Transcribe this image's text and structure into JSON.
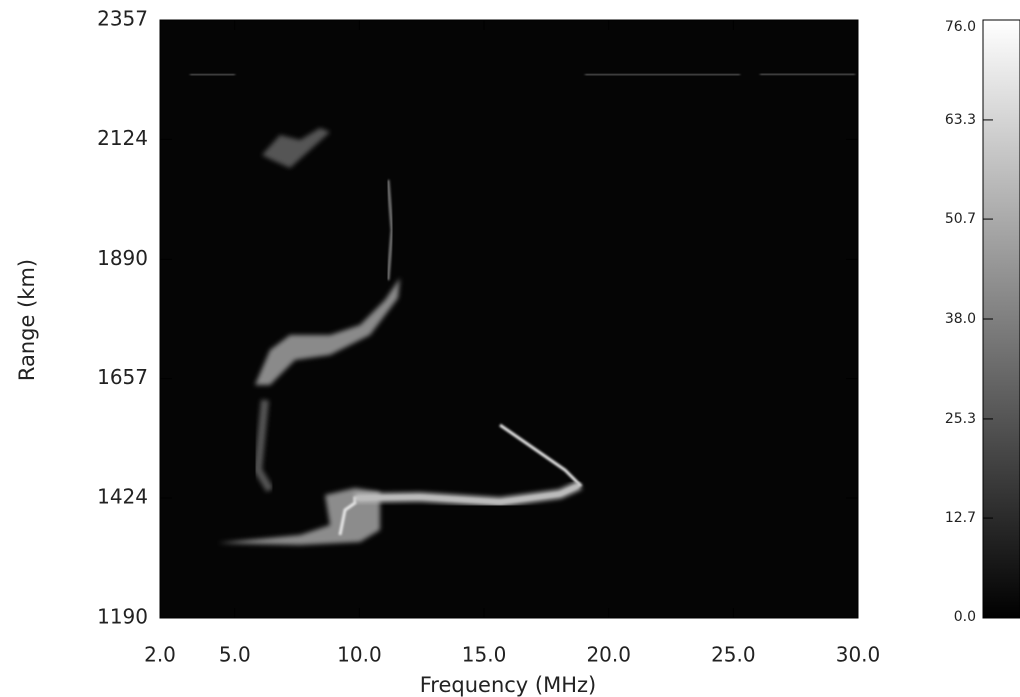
{
  "chart_data": {
    "type": "heatmap",
    "x_label": "Frequency  (MHz)",
    "y_label": "Range  (km)",
    "xlim": [
      2,
      30
    ],
    "xticks": [
      {
        "value": 2,
        "label": "2.0"
      },
      {
        "value": 5,
        "label": "5.0"
      },
      {
        "value": 10,
        "label": "10.0"
      },
      {
        "value": 15,
        "label": "15.0"
      },
      {
        "value": 20,
        "label": "20.0"
      },
      {
        "value": 25,
        "label": "25.0"
      },
      {
        "value": 30,
        "label": "30.0"
      }
    ],
    "ylim": [
      1190,
      2357
    ],
    "yticks": [
      1190,
      1424,
      1657,
      1890,
      2124,
      2357
    ],
    "colorbar": {
      "lim": [
        0,
        76
      ],
      "ticks": [
        {
          "value": 0,
          "label": "0.0"
        },
        {
          "value": 12.7,
          "label": "12.7"
        },
        {
          "value": 25.3,
          "label": "25.3"
        },
        {
          "value": 38,
          "label": "38.0"
        },
        {
          "value": 50.7,
          "label": "50.7"
        },
        {
          "value": 63.3,
          "label": "63.3"
        },
        {
          "value": 76,
          "label": "76.0"
        }
      ]
    }
  }
}
